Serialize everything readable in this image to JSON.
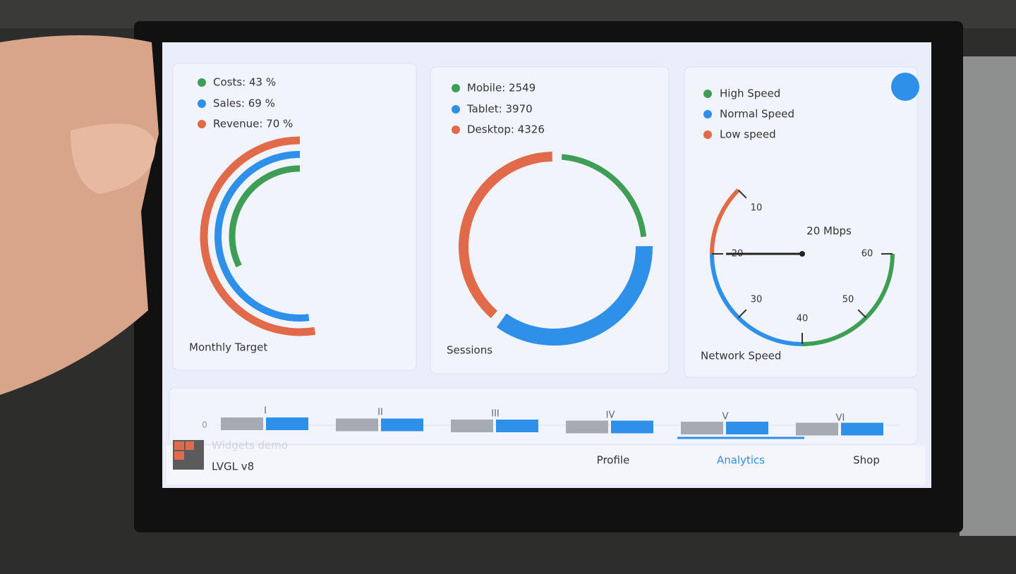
{
  "header": {
    "app": "LVGL v8",
    "subtitle": "Widgets demo"
  },
  "tabs": [
    "Profile",
    "Analytics",
    "Shop"
  ],
  "monthly_target": {
    "title": "Monthly Target",
    "items": [
      {
        "label": "Costs: 43 %",
        "value": 43,
        "color": "#3f9e55"
      },
      {
        "label": "Sales: 69 %",
        "value": 69,
        "color": "#2f90ea"
      },
      {
        "label": "Revenue: 70 %",
        "value": 70,
        "color": "#e06a4a"
      }
    ]
  },
  "sessions": {
    "title": "Sessions",
    "items": [
      {
        "label": "Mobile: 2549",
        "value": 2549,
        "color": "#3f9e55"
      },
      {
        "label": "Tablet: 3970",
        "value": 3970,
        "color": "#2f90ea"
      },
      {
        "label": "Desktop: 4326",
        "value": 4326,
        "color": "#e06a4a"
      }
    ]
  },
  "network_speed": {
    "title": "Network Speed",
    "legend": [
      {
        "label": "High Speed",
        "color": "#3f9e55"
      },
      {
        "label": "Normal Speed",
        "color": "#2f90ea"
      },
      {
        "label": "Low speed",
        "color": "#e06a4a"
      }
    ],
    "value": 20,
    "value_label": "20 Mbps",
    "range": [
      10,
      60
    ],
    "ticks": [
      10,
      20,
      30,
      40,
      50,
      60
    ],
    "zones": [
      {
        "from": 10,
        "to": 20,
        "color": "#e06a4a"
      },
      {
        "from": 20,
        "to": 40,
        "color": "#2f90ea"
      },
      {
        "from": 40,
        "to": 60,
        "color": "#3f9e55"
      }
    ]
  },
  "bar_chart": {
    "categories": [
      "I",
      "II",
      "III",
      "IV",
      "V",
      "VI"
    ],
    "yticks": [
      0
    ]
  }
}
